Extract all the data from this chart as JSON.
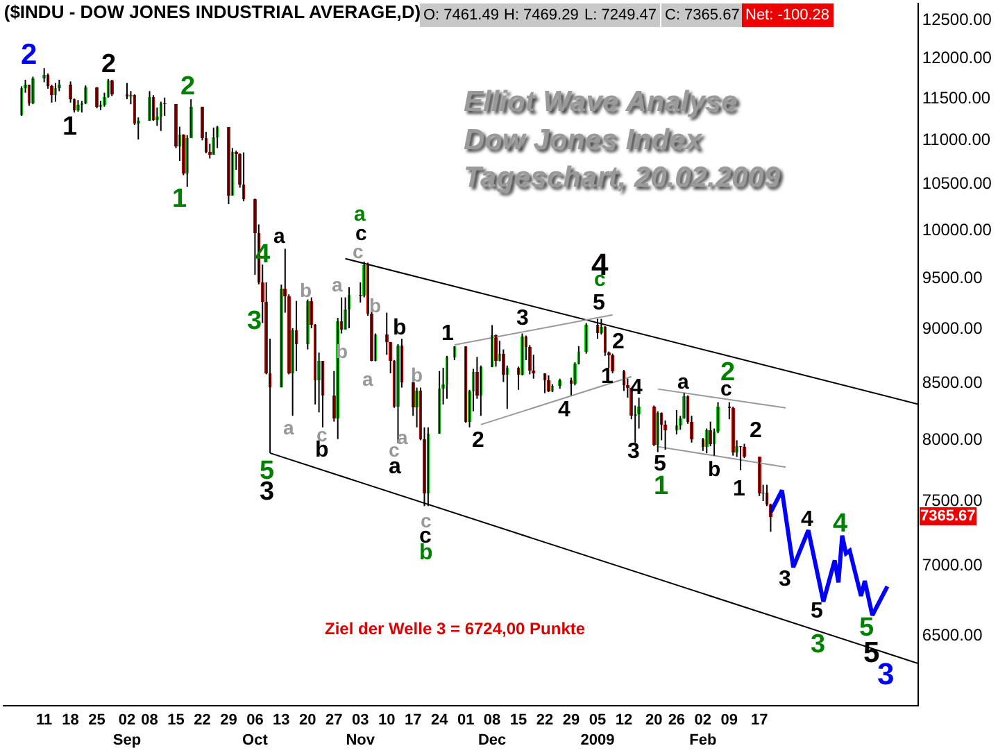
{
  "chart_data": {
    "type": "candlestick",
    "title": "($INDU - DOW JONES INDUSTRIAL AVERAGE,D)",
    "subtitle": "Elliot Wave Analyse\nDow Jones Index\nTageschart, 20.02.2009",
    "x": [
      "2008-08-05",
      "2008-08-06",
      "2008-08-07",
      "2008-08-08",
      "2008-08-11",
      "2008-08-12",
      "2008-08-13",
      "2008-08-14",
      "2008-08-15",
      "2008-08-18",
      "2008-08-19",
      "2008-08-20",
      "2008-08-21",
      "2008-08-22",
      "2008-08-25",
      "2008-08-26",
      "2008-08-27",
      "2008-08-28",
      "2008-08-29",
      "2008-09-02",
      "2008-09-03",
      "2008-09-04",
      "2008-09-05",
      "2008-09-08",
      "2008-09-09",
      "2008-09-10",
      "2008-09-11",
      "2008-09-12",
      "2008-09-15",
      "2008-09-16",
      "2008-09-17",
      "2008-09-18",
      "2008-09-19",
      "2008-09-22",
      "2008-09-23",
      "2008-09-24",
      "2008-09-25",
      "2008-09-26",
      "2008-09-29",
      "2008-09-30",
      "2008-10-01",
      "2008-10-02",
      "2008-10-03",
      "2008-10-06",
      "2008-10-07",
      "2008-10-08",
      "2008-10-09",
      "2008-10-10",
      "2008-10-13",
      "2008-10-14",
      "2008-10-15",
      "2008-10-16",
      "2008-10-17",
      "2008-10-20",
      "2008-10-21",
      "2008-10-22",
      "2008-10-23",
      "2008-10-24",
      "2008-10-27",
      "2008-10-28",
      "2008-10-29",
      "2008-10-30",
      "2008-10-31",
      "2008-11-03",
      "2008-11-04",
      "2008-11-05",
      "2008-11-06",
      "2008-11-07",
      "2008-11-10",
      "2008-11-11",
      "2008-11-12",
      "2008-11-13",
      "2008-11-14",
      "2008-11-17",
      "2008-11-18",
      "2008-11-19",
      "2008-11-20",
      "2008-11-21",
      "2008-11-24",
      "2008-11-25",
      "2008-11-26",
      "2008-11-28",
      "2008-12-01",
      "2008-12-02",
      "2008-12-03",
      "2008-12-04",
      "2008-12-05",
      "2008-12-08",
      "2008-12-09",
      "2008-12-10",
      "2008-12-11",
      "2008-12-12",
      "2008-12-15",
      "2008-12-16",
      "2008-12-17",
      "2008-12-18",
      "2008-12-19",
      "2008-12-22",
      "2008-12-23",
      "2008-12-24",
      "2008-12-26",
      "2008-12-29",
      "2008-12-30",
      "2008-12-31",
      "2009-01-02",
      "2009-01-05",
      "2009-01-06",
      "2009-01-07",
      "2009-01-08",
      "2009-01-09",
      "2009-01-12",
      "2009-01-13",
      "2009-01-14",
      "2009-01-15",
      "2009-01-16",
      "2009-01-20",
      "2009-01-21",
      "2009-01-22",
      "2009-01-23",
      "2009-01-26",
      "2009-01-27",
      "2009-01-28",
      "2009-01-29",
      "2009-01-30",
      "2009-02-02",
      "2009-02-03",
      "2009-02-04",
      "2009-02-05",
      "2009-02-06",
      "2009-02-09",
      "2009-02-10",
      "2009-02-11",
      "2009-02-12",
      "2009-02-13",
      "2009-02-17",
      "2009-02-18",
      "2009-02-19",
      "2009-02-20"
    ],
    "ohlc": [
      [
        11285,
        11640,
        11280,
        11615
      ],
      [
        11615,
        11720,
        11560,
        11656
      ],
      [
        11656,
        11660,
        11400,
        11432
      ],
      [
        11432,
        11760,
        11420,
        11734
      ],
      [
        11734,
        11867,
        11690,
        11782
      ],
      [
        11782,
        11800,
        11610,
        11642
      ],
      [
        11642,
        11660,
        11440,
        11532
      ],
      [
        11532,
        11680,
        11450,
        11615
      ],
      [
        11615,
        11720,
        11580,
        11659
      ],
      [
        11659,
        11700,
        11440,
        11479
      ],
      [
        11479,
        11490,
        11320,
        11348
      ],
      [
        11348,
        11470,
        11330,
        11417
      ],
      [
        11417,
        11460,
        11320,
        11430
      ],
      [
        11430,
        11650,
        11420,
        11628
      ],
      [
        11628,
        11630,
        11370,
        11386
      ],
      [
        11386,
        11460,
        11350,
        11413
      ],
      [
        11413,
        11560,
        11390,
        11502
      ],
      [
        11502,
        11730,
        11500,
        11715
      ],
      [
        11715,
        11720,
        11520,
        11543
      ],
      [
        11543,
        11680,
        11480,
        11516
      ],
      [
        11516,
        11580,
        11420,
        11532
      ],
      [
        11532,
        11540,
        11170,
        11188
      ],
      [
        11188,
        11260,
        11000,
        11220
      ],
      [
        11220,
        11580,
        11220,
        11510
      ],
      [
        11510,
        11530,
        11220,
        11230
      ],
      [
        11230,
        11380,
        11160,
        11268
      ],
      [
        11268,
        11450,
        11100,
        11433
      ],
      [
        11433,
        11500,
        11280,
        11421
      ],
      [
        11421,
        11421,
        10900,
        10917
      ],
      [
        10917,
        11150,
        10750,
        11059
      ],
      [
        11059,
        11060,
        10590,
        10609
      ],
      [
        10609,
        11050,
        10460,
        11019
      ],
      [
        11019,
        11480,
        11019,
        11388
      ],
      [
        11388,
        11390,
        10990,
        11015
      ],
      [
        11015,
        11090,
        10840,
        10854
      ],
      [
        10854,
        10950,
        10780,
        10825
      ],
      [
        10825,
        11140,
        10825,
        11022
      ],
      [
        11022,
        11160,
        10900,
        11143
      ],
      [
        11143,
        11143,
        10270,
        10365
      ],
      [
        10365,
        10900,
        10365,
        10851
      ],
      [
        10851,
        10870,
        10650,
        10831
      ],
      [
        10831,
        10840,
        10450,
        10482
      ],
      [
        10482,
        10850,
        10300,
        10325
      ],
      [
        10325,
        10330,
        9525,
        9955
      ],
      [
        9955,
        10050,
        9430,
        9447
      ],
      [
        9447,
        9630,
        9050,
        9258
      ],
      [
        9258,
        9450,
        8570,
        8579
      ],
      [
        8579,
        8901,
        7882,
        8451
      ],
      [
        8451,
        9427,
        8451,
        9387
      ],
      [
        9387,
        9794,
        9150,
        9310
      ],
      [
        9310,
        9330,
        8570,
        8577
      ],
      [
        8577,
        9000,
        8200,
        8979
      ],
      [
        8979,
        9265,
        8600,
        8852
      ],
      [
        8852,
        9280,
        8800,
        9265
      ],
      [
        9265,
        9300,
        9000,
        9033
      ],
      [
        9033,
        9040,
        8300,
        8519
      ],
      [
        8519,
        8770,
        8230,
        8691
      ],
      [
        8691,
        8691,
        8100,
        8378
      ],
      [
        8378,
        8600,
        8150,
        8175
      ],
      [
        8175,
        9100,
        8000,
        9065
      ],
      [
        9065,
        9300,
        8950,
        8990
      ],
      [
        8990,
        9300,
        8990,
        9180
      ],
      [
        9180,
        9400,
        9000,
        9325
      ],
      [
        9325,
        9450,
        9250,
        9319
      ],
      [
        9319,
        9660,
        9300,
        9625
      ],
      [
        9625,
        9650,
        9120,
        9139
      ],
      [
        9139,
        9160,
        8690,
        8695
      ],
      [
        8695,
        8950,
        8690,
        8943
      ],
      [
        8943,
        9150,
        8750,
        8870
      ],
      [
        8870,
        8870,
        8580,
        8693
      ],
      [
        8693,
        8700,
        8270,
        8283
      ],
      [
        8283,
        8850,
        7965,
        8835
      ],
      [
        8835,
        8900,
        8450,
        8497
      ],
      [
        8497,
        8500,
        8200,
        8273
      ],
      [
        8273,
        8450,
        8100,
        8424
      ],
      [
        8424,
        8450,
        7990,
        7997
      ],
      [
        7997,
        8100,
        7450,
        7552
      ],
      [
        7552,
        8100,
        7450,
        8046
      ],
      [
        8046,
        8600,
        8046,
        8443
      ],
      [
        8443,
        8630,
        8300,
        8479
      ],
      [
        8479,
        8740,
        8350,
        8727
      ],
      [
        8727,
        8830,
        8700,
        8829
      ],
      [
        8829,
        8830,
        8140,
        8149
      ],
      [
        8149,
        8430,
        8100,
        8419
      ],
      [
        8419,
        8620,
        8240,
        8591
      ],
      [
        8591,
        8730,
        8350,
        8376
      ],
      [
        8376,
        8650,
        8200,
        8635
      ],
      [
        8635,
        9030,
        8635,
        8934
      ],
      [
        8934,
        8940,
        8640,
        8691
      ],
      [
        8691,
        8880,
        8690,
        8761
      ],
      [
        8761,
        8800,
        8500,
        8565
      ],
      [
        8565,
        8650,
        8260,
        8629
      ],
      [
        8629,
        8640,
        8430,
        8564
      ],
      [
        8564,
        8950,
        8560,
        8924
      ],
      [
        8924,
        8930,
        8700,
        8824
      ],
      [
        8824,
        8840,
        8570,
        8604
      ],
      [
        8604,
        8750,
        8530,
        8579
      ],
      [
        8579,
        8580,
        8400,
        8519
      ],
      [
        8519,
        8560,
        8410,
        8419
      ],
      [
        8419,
        8480,
        8410,
        8468
      ],
      [
        8468,
        8530,
        8440,
        8515
      ],
      [
        8515,
        8540,
        8380,
        8483
      ],
      [
        8483,
        8680,
        8470,
        8668
      ],
      [
        8668,
        8830,
        8660,
        8776
      ],
      [
        8776,
        9050,
        8760,
        9034
      ],
      [
        9034,
        9090,
        8900,
        8952
      ],
      [
        8952,
        9090,
        8940,
        9015
      ],
      [
        9015,
        9020,
        8740,
        8769
      ],
      [
        8769,
        8780,
        8630,
        8742
      ],
      [
        8742,
        8760,
        8580,
        8599
      ],
      [
        8599,
        8610,
        8420,
        8474
      ],
      [
        8474,
        8530,
        8360,
        8448
      ],
      [
        8448,
        8450,
        8170,
        8200
      ],
      [
        8200,
        8290,
        7970,
        8212
      ],
      [
        8212,
        8360,
        8090,
        8281
      ],
      [
        8281,
        8290,
        7940,
        7949
      ],
      [
        7949,
        8240,
        7890,
        8228
      ],
      [
        8228,
        8230,
        7990,
        8123
      ],
      [
        8123,
        8160,
        7910,
        8077
      ],
      [
        8077,
        8250,
        8040,
        8116
      ],
      [
        8116,
        8200,
        8080,
        8175
      ],
      [
        8175,
        8400,
        8175,
        8375
      ],
      [
        8375,
        8380,
        8130,
        8149
      ],
      [
        8149,
        8200,
        7970,
        8001
      ],
      [
        8001,
        8010,
        7900,
        7936
      ],
      [
        7936,
        8090,
        7880,
        8078
      ],
      [
        8078,
        8150,
        7940,
        7957
      ],
      [
        7957,
        8090,
        7860,
        8063
      ],
      [
        8063,
        8320,
        8050,
        8280
      ],
      [
        8280,
        8320,
        8170,
        8270
      ],
      [
        8270,
        8280,
        7860,
        7888
      ],
      [
        7888,
        7990,
        7850,
        7939
      ],
      [
        7939,
        7940,
        7740,
        7933
      ],
      [
        7933,
        7960,
        7840,
        7850
      ],
      [
        7850,
        7850,
        7530,
        7553
      ],
      [
        7553,
        7620,
        7490,
        7555
      ],
      [
        7555,
        7620,
        7450,
        7465
      ],
      [
        7461.49,
        7469.29,
        7249.47,
        7365.67
      ]
    ],
    "value_labels": [
      null,
      null,
      null,
      null,
      null,
      null,
      null,
      null,
      null,
      null,
      null,
      null,
      null,
      null,
      null,
      null,
      null,
      null,
      null,
      null,
      null,
      null,
      null,
      null,
      null,
      null,
      null,
      null,
      null,
      null,
      null,
      null,
      null,
      null,
      null,
      null,
      null,
      null,
      null,
      null,
      null,
      null,
      null,
      null,
      null,
      null,
      null,
      null,
      null,
      null,
      null,
      null,
      null,
      null,
      null,
      null,
      null,
      null,
      null,
      null,
      null,
      null,
      null,
      null,
      null,
      null,
      null,
      null,
      null,
      null,
      null,
      null,
      null,
      null,
      null,
      null,
      null,
      null,
      null,
      null,
      null,
      null,
      null,
      null,
      null,
      null,
      null,
      null,
      null,
      null,
      null,
      null,
      null,
      null,
      null,
      null,
      null,
      null,
      null,
      null,
      null,
      null,
      null,
      null,
      null,
      null,
      null,
      null,
      null,
      null,
      null,
      null,
      null,
      null,
      null,
      null,
      null,
      null,
      null,
      null,
      null,
      null,
      null,
      null,
      null,
      null,
      null,
      null,
      null,
      null,
      null,
      null,
      null,
      null,
      null,
      null,
      null,
      "7365.67"
    ],
    "series": [
      {
        "type": "line",
        "color": "#000000",
        "x": [
          "2008-10-30",
          "2009-03-31"
        ],
        "values": [
          9691,
          8304
        ]
      },
      {
        "type": "line",
        "color": "#000000",
        "x": [
          "2008-10-10",
          "2009-03-31"
        ],
        "values": [
          7882,
          6304
        ]
      },
      {
        "type": "line",
        "color": "#999999",
        "x": [
          "2008-11-28",
          "2009-01-09"
        ],
        "values": [
          8842,
          9129
        ]
      },
      {
        "type": "line",
        "color": "#999999",
        "x": [
          "2008-12-05",
          "2009-01-14"
        ],
        "values": [
          8124,
          8549
        ]
      },
      {
        "type": "line",
        "color": "#999999",
        "x": [
          "2009-01-21",
          "2009-02-24"
        ],
        "values": [
          8437,
          8270
        ]
      },
      {
        "type": "line",
        "color": "#999999",
        "x": [
          "2009-01-21",
          "2009-02-24"
        ],
        "values": [
          7936,
          7765
        ]
      },
      {
        "type": "line",
        "color": "#0000ff",
        "x": [
          "2009-02-20",
          "2009-02-23",
          "2009-02-26",
          "2009-03-02",
          "2009-03-06",
          "2009-03-09",
          "2009-03-10",
          "2009-03-11",
          "2009-03-12",
          "2009-03-13",
          "2009-03-16",
          "2009-03-17",
          "2009-03-19",
          "2009-03-23"
        ],
        "values": [
          7400,
          7575,
          6981,
          7261,
          6731,
          7032,
          6870,
          7220,
          7084,
          7105,
          6771,
          6880,
          6634,
          6840
        ]
      }
    ],
    "xlim": [
      "2008-07-31",
      "2009-03-31"
    ],
    "ylim": [
      6030,
      12720
    ],
    "log": true,
    "xticks": [
      {
        "value": "2008-08-11",
        "label": "11"
      },
      {
        "value": "2008-08-18",
        "label": "18"
      },
      {
        "value": "2008-08-25",
        "label": "25"
      },
      {
        "value": "2008-09-02",
        "label": "02\nSep"
      },
      {
        "value": "2008-09-08",
        "label": "08"
      },
      {
        "value": "2008-09-15",
        "label": "15"
      },
      {
        "value": "2008-09-22",
        "label": "22"
      },
      {
        "value": "2008-09-29",
        "label": "29"
      },
      {
        "value": "2008-10-06",
        "label": "06\nOct"
      },
      {
        "value": "2008-10-13",
        "label": "13"
      },
      {
        "value": "2008-10-20",
        "label": "20"
      },
      {
        "value": "2008-10-27",
        "label": "27"
      },
      {
        "value": "2008-11-03",
        "label": "03\nNov"
      },
      {
        "value": "2008-11-10",
        "label": "10"
      },
      {
        "value": "2008-11-17",
        "label": "17"
      },
      {
        "value": "2008-11-24",
        "label": "24"
      },
      {
        "value": "2008-12-01",
        "label": "01"
      },
      {
        "value": "2008-12-08",
        "label": "08\nDec"
      },
      {
        "value": "2008-12-15",
        "label": "15"
      },
      {
        "value": "2008-12-22",
        "label": "22"
      },
      {
        "value": "2008-12-29",
        "label": "29"
      },
      {
        "value": "2009-01-05",
        "label": "05\n2009"
      },
      {
        "value": "2009-01-12",
        "label": "12"
      },
      {
        "value": "2009-01-20",
        "label": "20"
      },
      {
        "value": "2009-01-26",
        "label": "26"
      },
      {
        "value": "2009-02-02",
        "label": "02\nFeb"
      },
      {
        "value": "2009-02-09",
        "label": "09"
      },
      {
        "value": "2009-02-17",
        "label": "17"
      }
    ],
    "yticks": [
      {
        "value": 6500,
        "label": "6500.00"
      },
      {
        "value": 7000,
        "label": "7000.00"
      },
      {
        "value": 7500,
        "label": "7500.00"
      },
      {
        "value": 8000,
        "label": "8000.00"
      },
      {
        "value": 8500,
        "label": "8500.00"
      },
      {
        "value": 9000,
        "label": "9000.00"
      },
      {
        "value": 9500,
        "label": "9500.00"
      },
      {
        "value": 10000,
        "label": "10000.00"
      },
      {
        "value": 10500,
        "label": "10500.00"
      },
      {
        "value": 11000,
        "label": "11000.00"
      },
      {
        "value": 11500,
        "label": "11500.00"
      },
      {
        "value": 12000,
        "label": "12000.00"
      },
      {
        "value": 12500,
        "label": "12500.00"
      }
    ],
    "annotations": [
      "O: 7461.49",
      "H: 7469.29",
      "L: 7249.47",
      "C: 7365.67",
      "Net: -100.28",
      "Ziel der Welle 3 = 6724,00 Punkte",
      "2",
      "2",
      "1",
      "2",
      "1",
      "a",
      "4",
      "3",
      "b",
      "a",
      "b",
      "a",
      "c",
      "b",
      "5",
      "3",
      "a",
      "c",
      "c",
      "b",
      "a",
      "b",
      "b",
      "a",
      "c",
      "a",
      "c",
      "c",
      "b",
      "1",
      "2",
      "3",
      "4",
      "4",
      "c",
      "5",
      "2",
      "1",
      "4",
      "3",
      "5",
      "1",
      "a",
      "b",
      "2",
      "c",
      "2",
      "1",
      "3",
      "4",
      "4",
      "5",
      "3",
      "5",
      "5",
      "3"
    ]
  }
}
